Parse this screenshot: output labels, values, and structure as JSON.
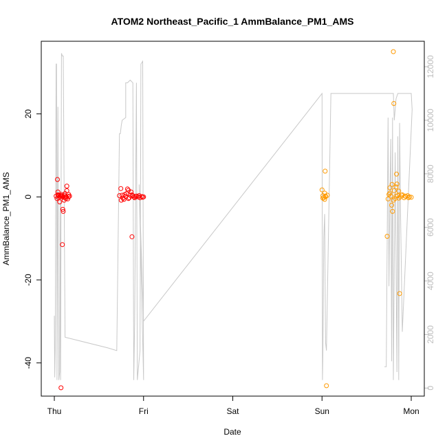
{
  "chart_data": {
    "type": "scatter",
    "title": "ATOM2 Northeast_Pacific_1 AmmBalance_PM1_AMS",
    "xlabel": "Date",
    "ylabel": "AmmBalance_PM1_AMS",
    "x_unit": "days since Thu 00:00",
    "xlim": [
      0,
      4
    ],
    "ylim": [
      -48,
      37.5
    ],
    "x_ticks": [
      {
        "value": 0,
        "label": "Thu"
      },
      {
        "value": 1,
        "label": "Fri"
      },
      {
        "value": 2,
        "label": "Sat"
      },
      {
        "value": 3,
        "label": "Sun"
      },
      {
        "value": 4,
        "label": "Mon"
      }
    ],
    "y_ticks": [
      -40,
      -20,
      0,
      20
    ],
    "y2_ticks": [
      0,
      2000,
      4000,
      6000,
      8000,
      10000,
      12000
    ],
    "y2lim": [
      -300,
      12950
    ],
    "grid": false,
    "colors": {
      "series_red": "#ff0000",
      "series_orange": "#ff9a00",
      "background_line": "#c8c8c8",
      "right_axis": "#bdbdbd"
    },
    "series": [
      {
        "color": "#ff0000",
        "marker": "open-circle",
        "points": [
          [
            0.02,
            0.2
          ],
          [
            0.03,
            -0.4
          ],
          [
            0.04,
            0.5
          ],
          [
            0.035,
            4.2
          ],
          [
            0.04,
            1.2
          ],
          [
            0.05,
            -0.2
          ],
          [
            0.06,
            -1.2
          ],
          [
            0.07,
            0.3
          ],
          [
            0.075,
            -46
          ],
          [
            0.08,
            0.6
          ],
          [
            0.09,
            -11.5
          ],
          [
            0.095,
            -3
          ],
          [
            0.1,
            -3.5
          ],
          [
            0.11,
            -0.8
          ],
          [
            0.12,
            0.8
          ],
          [
            0.13,
            0.1
          ],
          [
            0.14,
            2.6
          ],
          [
            0.14,
            1.5
          ],
          [
            0.15,
            -0.5
          ],
          [
            0.13,
            -0.4
          ],
          [
            0.11,
            0.4
          ],
          [
            0.06,
            0.1
          ],
          [
            0.09,
            0.2
          ],
          [
            0.1,
            -0.1
          ],
          [
            0.12,
            -0.2
          ],
          [
            0.08,
            0.3
          ],
          [
            0.05,
            0.4
          ],
          [
            0.16,
            0.0
          ],
          [
            0.16,
            0.6
          ],
          [
            0.17,
            0.2
          ],
          [
            0.73,
            0.3
          ],
          [
            0.745,
            2.0
          ],
          [
            0.76,
            0.4
          ],
          [
            0.77,
            -0.3
          ],
          [
            0.78,
            -0.6
          ],
          [
            0.8,
            0.1
          ],
          [
            0.81,
            0.8
          ],
          [
            0.82,
            1.9
          ],
          [
            0.83,
            1.6
          ],
          [
            0.84,
            -0.2
          ],
          [
            0.85,
            0.4
          ],
          [
            0.86,
            1.2
          ],
          [
            0.87,
            -9.6
          ],
          [
            0.88,
            0.3
          ],
          [
            0.89,
            0.0
          ],
          [
            0.9,
            -0.2
          ],
          [
            0.92,
            0.2
          ],
          [
            0.94,
            0.0
          ],
          [
            0.96,
            -0.2
          ],
          [
            0.98,
            0.1
          ],
          [
            1.0,
            0.0
          ],
          [
            0.75,
            -0.8
          ],
          [
            0.79,
            0.6
          ],
          [
            0.83,
            -0.4
          ],
          [
            0.87,
            0.5
          ],
          [
            0.91,
            0.1
          ],
          [
            0.95,
            0.3
          ],
          [
            0.99,
            -0.1
          ]
        ]
      },
      {
        "color": "#ff9a00",
        "marker": "open-circle",
        "points": [
          [
            3.0,
            1.7
          ],
          [
            3.01,
            0.3
          ],
          [
            3.02,
            -0.2
          ],
          [
            3.03,
            0.9
          ],
          [
            3.035,
            6.2
          ],
          [
            3.04,
            0.0
          ],
          [
            3.03,
            -0.6
          ],
          [
            3.05,
            -45.5
          ],
          [
            3.06,
            0.4
          ],
          [
            3.01,
            -0.3
          ],
          [
            3.04,
            0.2
          ],
          [
            3.73,
            -9.5
          ],
          [
            3.75,
            0.6
          ],
          [
            3.76,
            2.2
          ],
          [
            3.77,
            0.2
          ],
          [
            3.78,
            -2.0
          ],
          [
            3.785,
            3.0
          ],
          [
            3.79,
            -3.5
          ],
          [
            3.8,
            35
          ],
          [
            3.805,
            22.5
          ],
          [
            3.81,
            1.5
          ],
          [
            3.82,
            -0.4
          ],
          [
            3.83,
            2.4
          ],
          [
            3.835,
            5.5
          ],
          [
            3.84,
            3.1
          ],
          [
            3.85,
            0.3
          ],
          [
            3.86,
            1.4
          ],
          [
            3.87,
            -23.3
          ],
          [
            3.88,
            0.0
          ],
          [
            3.9,
            0.5
          ],
          [
            3.92,
            -0.2
          ],
          [
            3.94,
            0.1
          ],
          [
            3.96,
            0.3
          ],
          [
            3.98,
            0.0
          ],
          [
            4.0,
            -0.1
          ],
          [
            3.74,
            -0.5
          ],
          [
            3.76,
            0.9
          ],
          [
            3.8,
            -0.8
          ],
          [
            3.83,
            0.2
          ],
          [
            3.86,
            -0.3
          ],
          [
            3.89,
            0.4
          ],
          [
            3.93,
            0.2
          ],
          [
            3.97,
            -0.2
          ]
        ]
      }
    ],
    "background_line": {
      "color": "#c8c8c8",
      "axis": "right",
      "points": [
        [
          0,
          2700
        ],
        [
          0.005,
          400
        ],
        [
          0.01,
          1400
        ],
        [
          0.02,
          12100
        ],
        [
          0.025,
          12100
        ],
        [
          0.03,
          300
        ],
        [
          0.04,
          10500
        ],
        [
          0.05,
          300
        ],
        [
          0.06,
          600
        ],
        [
          0.065,
          7000
        ],
        [
          0.07,
          300
        ],
        [
          0.08,
          12500
        ],
        [
          0.09,
          12400
        ],
        [
          0.1,
          12400
        ],
        [
          0.12,
          1900
        ],
        [
          0.6,
          1500
        ],
        [
          0.7,
          1400
        ],
        [
          0.73,
          9500
        ],
        [
          0.74,
          9500
        ],
        [
          0.75,
          9800
        ],
        [
          0.76,
          10000
        ],
        [
          0.8,
          10100
        ],
        [
          0.8,
          11400
        ],
        [
          0.82,
          11400
        ],
        [
          0.85,
          11500
        ],
        [
          0.88,
          11400
        ],
        [
          0.89,
          300
        ],
        [
          0.9,
          2400
        ],
        [
          0.92,
          11400
        ],
        [
          0.93,
          300
        ],
        [
          0.96,
          1400
        ],
        [
          0.97,
          12100
        ],
        [
          0.99,
          12200
        ],
        [
          1.0,
          300
        ],
        [
          0.95,
          7600
        ],
        [
          1.0,
          2500
        ],
        [
          3.0,
          11000
        ],
        [
          3.005,
          300
        ],
        [
          3.01,
          1200
        ],
        [
          3.02,
          5600
        ],
        [
          3.03,
          6500
        ],
        [
          3.04,
          1700
        ],
        [
          3.05,
          1400
        ],
        [
          3.1,
          11000
        ],
        [
          3.7,
          11000
        ],
        [
          3.75,
          11000
        ],
        [
          3.78,
          11000
        ],
        [
          3.8,
          11000
        ],
        [
          3.81,
          10000
        ],
        [
          3.83,
          10800
        ],
        [
          3.85,
          11000
        ],
        [
          3.9,
          11000
        ],
        [
          4.0,
          11000
        ],
        [
          4.01,
          10400
        ],
        [
          3.9,
          2100
        ],
        [
          3.88,
          6600
        ],
        [
          3.87,
          9900
        ],
        [
          3.86,
          300
        ],
        [
          3.85,
          9400
        ],
        [
          3.84,
          600
        ],
        [
          3.82,
          8800
        ],
        [
          3.8,
          300
        ],
        [
          3.79,
          10100
        ],
        [
          3.78,
          1000
        ],
        [
          3.77,
          9300
        ],
        [
          3.76,
          7000
        ],
        [
          3.75,
          3800
        ],
        [
          3.74,
          10100
        ],
        [
          3.72,
          800
        ],
        [
          3.7,
          800
        ]
      ]
    }
  }
}
